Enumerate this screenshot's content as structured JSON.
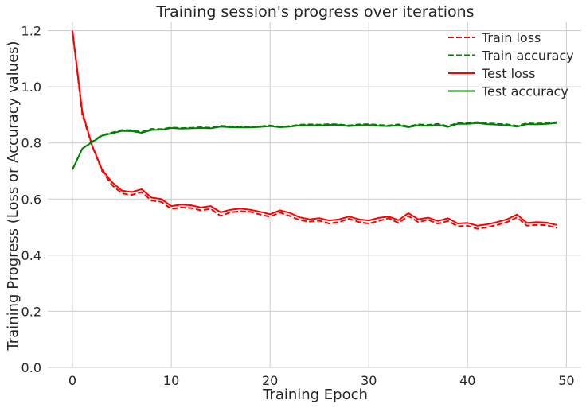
{
  "chart_data": {
    "type": "line",
    "title": "Training session's progress over iterations",
    "xlabel": "Training Epoch",
    "ylabel": "Training Progress (Loss or Accuracy values)",
    "xlim": [
      -2.5,
      51.5
    ],
    "ylim": [
      0.0,
      1.23
    ],
    "xticks": [
      "0",
      "10",
      "20",
      "30",
      "40",
      "50"
    ],
    "xtick_values": [
      0,
      10,
      20,
      30,
      40,
      50
    ],
    "yticks": [
      "0.0",
      "0.2",
      "0.4",
      "0.6",
      "0.8",
      "1.0",
      "1.2"
    ],
    "ytick_values": [
      0.0,
      0.2,
      0.4,
      0.6,
      0.8,
      1.0,
      1.2
    ],
    "grid": true,
    "legend_position": "top-right",
    "x": [
      0,
      1,
      2,
      3,
      4,
      5,
      6,
      7,
      8,
      9,
      10,
      11,
      12,
      13,
      14,
      15,
      16,
      17,
      18,
      19,
      20,
      21,
      22,
      23,
      24,
      25,
      26,
      27,
      28,
      29,
      30,
      31,
      32,
      33,
      34,
      35,
      36,
      37,
      38,
      39,
      40,
      41,
      42,
      43,
      44,
      45,
      46,
      47,
      48,
      49
    ],
    "series": [
      {
        "name": "Train loss",
        "color": "#ff0000",
        "style": "dashed",
        "values": [
          1.2,
          0.9,
          0.79,
          0.7,
          0.65,
          0.62,
          0.615,
          0.625,
          0.595,
          0.59,
          0.565,
          0.57,
          0.568,
          0.56,
          0.565,
          0.54,
          0.553,
          0.557,
          0.555,
          0.545,
          0.537,
          0.552,
          0.54,
          0.525,
          0.52,
          0.523,
          0.513,
          0.518,
          0.53,
          0.518,
          0.513,
          0.522,
          0.532,
          0.515,
          0.54,
          0.518,
          0.526,
          0.512,
          0.522,
          0.503,
          0.505,
          0.494,
          0.5,
          0.508,
          0.518,
          0.535,
          0.505,
          0.508,
          0.507,
          0.497
        ]
      },
      {
        "name": "Train accuracy",
        "color": "#008000",
        "style": "dashed",
        "values": [
          0.705,
          0.78,
          0.805,
          0.828,
          0.837,
          0.846,
          0.845,
          0.839,
          0.85,
          0.849,
          0.855,
          0.853,
          0.854,
          0.856,
          0.854,
          0.861,
          0.859,
          0.858,
          0.857,
          0.859,
          0.862,
          0.858,
          0.86,
          0.865,
          0.866,
          0.865,
          0.867,
          0.866,
          0.862,
          0.866,
          0.867,
          0.864,
          0.862,
          0.866,
          0.859,
          0.866,
          0.864,
          0.868,
          0.86,
          0.871,
          0.871,
          0.874,
          0.87,
          0.868,
          0.866,
          0.861,
          0.87,
          0.869,
          0.871,
          0.874
        ]
      },
      {
        "name": "Test loss",
        "color": "#ff0000",
        "style": "solid",
        "values": [
          1.2,
          0.91,
          0.79,
          0.705,
          0.66,
          0.63,
          0.625,
          0.635,
          0.605,
          0.6,
          0.575,
          0.58,
          0.578,
          0.57,
          0.575,
          0.553,
          0.562,
          0.566,
          0.562,
          0.555,
          0.546,
          0.56,
          0.551,
          0.535,
          0.528,
          0.532,
          0.524,
          0.528,
          0.538,
          0.528,
          0.524,
          0.533,
          0.538,
          0.525,
          0.55,
          0.528,
          0.534,
          0.522,
          0.532,
          0.513,
          0.515,
          0.505,
          0.51,
          0.518,
          0.528,
          0.545,
          0.515,
          0.518,
          0.516,
          0.508
        ]
      },
      {
        "name": "Test accuracy",
        "color": "#008000",
        "style": "solid",
        "values": [
          0.705,
          0.78,
          0.803,
          0.826,
          0.834,
          0.843,
          0.842,
          0.836,
          0.846,
          0.847,
          0.853,
          0.851,
          0.852,
          0.853,
          0.852,
          0.858,
          0.856,
          0.855,
          0.855,
          0.857,
          0.86,
          0.856,
          0.858,
          0.862,
          0.863,
          0.862,
          0.864,
          0.864,
          0.86,
          0.863,
          0.864,
          0.861,
          0.86,
          0.863,
          0.856,
          0.863,
          0.861,
          0.865,
          0.857,
          0.868,
          0.868,
          0.871,
          0.867,
          0.865,
          0.863,
          0.858,
          0.867,
          0.866,
          0.868,
          0.871
        ]
      }
    ]
  }
}
